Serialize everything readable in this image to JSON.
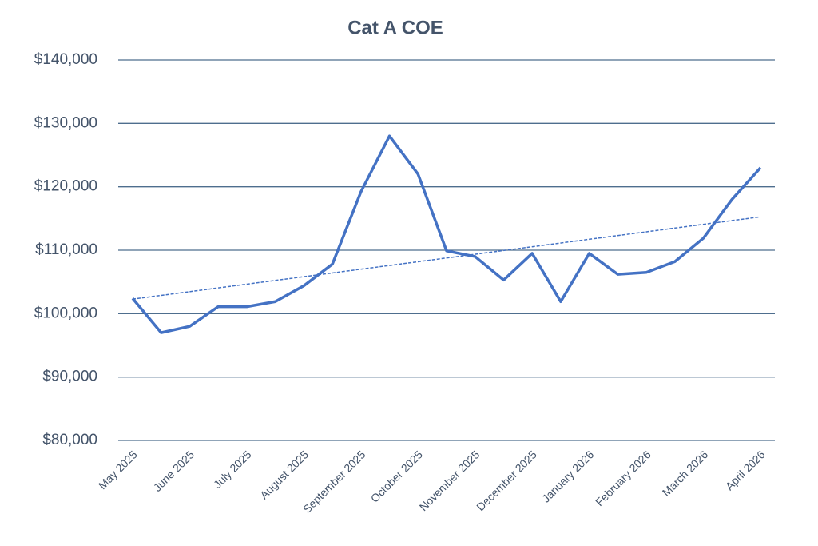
{
  "chart_data": {
    "type": "line",
    "title": "Cat A COE",
    "categories": [
      "May 2025",
      null,
      "June 2025",
      null,
      "July 2025",
      null,
      "August 2025",
      null,
      "September 2025",
      null,
      "October 2025",
      null,
      "November 2025",
      null,
      "December 2025",
      null,
      "January 2026",
      null,
      "February 2026",
      null,
      "March 2026",
      null,
      "April 2026"
    ],
    "series": [
      {
        "name": "Cat A COE",
        "color": "#4472c4",
        "values": [
          102400,
          97000,
          98000,
          101100,
          101100,
          101900,
          104400,
          107800,
          119200,
          128000,
          122000,
          109900,
          109000,
          105300,
          109500,
          101900,
          109500,
          106200,
          106500,
          108200,
          111900,
          118000,
          123000
        ]
      }
    ],
    "trendline": "linear",
    "ylim": [
      80000,
      140000
    ],
    "yticks": [
      {
        "value": 80000,
        "label": "$80,000"
      },
      {
        "value": 90000,
        "label": "$90,000"
      },
      {
        "value": 100000,
        "label": "$100,000"
      },
      {
        "value": 110000,
        "label": "$110,000"
      },
      {
        "value": 120000,
        "label": "$120,000"
      },
      {
        "value": 130000,
        "label": "$130,000"
      },
      {
        "value": 140000,
        "label": "$140,000"
      }
    ],
    "grid": true
  }
}
